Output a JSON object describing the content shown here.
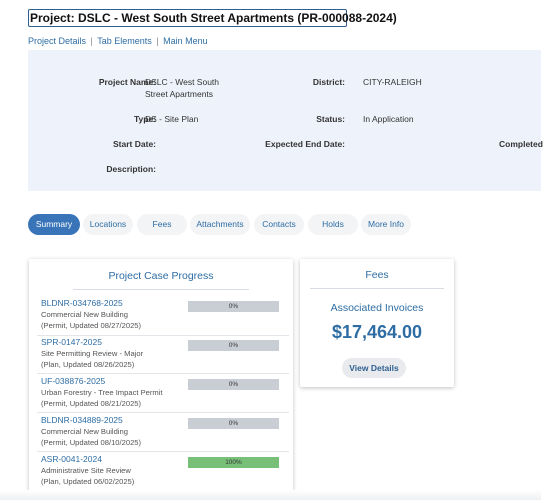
{
  "project": {
    "title": "Project: DSLC - West South Street Apartments (PR-000088-2024)"
  },
  "nav_links": {
    "project_details": "Project Details",
    "sep": "|",
    "tab_elements": "Tab Elements",
    "main_menu": "Main Menu"
  },
  "info": {
    "project_name_label": "Project Name:",
    "project_name_line1": "DSLC - West South",
    "project_name_line2": "Street Apartments",
    "district_label": "District:",
    "district_value": "CITY-RALEIGH",
    "type_label": "Type:",
    "type_value": "DS - Site Plan",
    "status_label": "Status:",
    "status_value": "In Application",
    "start_date_label": "Start Date:",
    "expected_end_label": "Expected End Date:",
    "completed_label": "Completed",
    "description_label": "Description:"
  },
  "tabs": [
    {
      "label": "Summary",
      "active": true
    },
    {
      "label": "Locations",
      "active": false
    },
    {
      "label": "Fees",
      "active": false
    },
    {
      "label": "Attachments",
      "active": false
    },
    {
      "label": "Contacts",
      "active": false
    },
    {
      "label": "Holds",
      "active": false
    },
    {
      "label": "More Info",
      "active": false
    }
  ],
  "progress_card": {
    "title": "Project Case Progress",
    "cases": [
      {
        "id": "BLDNR-034768-2025",
        "desc": "Commercial New Building",
        "meta": "(Permit, Updated 08/27/2025)",
        "progress_label": "0%",
        "progress": 0
      },
      {
        "id": "SPR-0147-2025",
        "desc": "Site Permitting Review - Major",
        "meta": "(Plan, Updated 08/26/2025)",
        "progress_label": "0%",
        "progress": 0
      },
      {
        "id": "UF-038876-2025",
        "desc": "Urban Forestry - Tree Impact Permit",
        "meta": "(Permit, Updated 08/21/2025)",
        "progress_label": "0%",
        "progress": 0
      },
      {
        "id": "BLDNR-034889-2025",
        "desc": "Commercial New Building",
        "meta": "(Permit, Updated 08/10/2025)",
        "progress_label": "0%",
        "progress": 0
      },
      {
        "id": "ASR-0041-2024",
        "desc": "Administrative Site Review",
        "meta": "(Plan, Updated 06/02/2025)",
        "progress_label": "100%",
        "progress": 100
      }
    ]
  },
  "fees_card": {
    "title": "Fees",
    "subtitle": "Associated Invoices",
    "amount": "$17,464.00",
    "button": "View Details"
  },
  "colors": {
    "accent": "#3874b7",
    "link": "#2e6da4",
    "panel_bg": "#eef3fb",
    "bar_empty": "#c9ced4",
    "bar_fill": "#78c078"
  }
}
